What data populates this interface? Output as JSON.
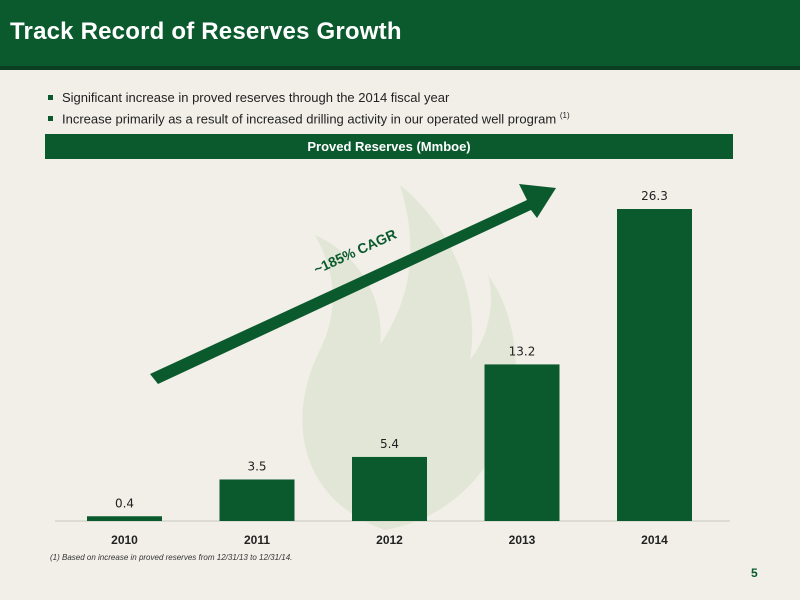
{
  "header": {
    "title": "Track Record of Reserves Growth"
  },
  "bullets": [
    {
      "text": "Significant increase in proved reserves through the 2014 fiscal year",
      "sup": ""
    },
    {
      "text": "Increase primarily as a result of increased drilling activity in our operated well program",
      "sup": "(1)"
    }
  ],
  "footnote": "(1) Based on increase in proved reserves from 12/31/13 to 12/31/14.",
  "page_number": "5",
  "colors": {
    "brand": "#0b5a2e",
    "background": "#f1efe8",
    "watermark": "#dfe4d2"
  },
  "chart_data": {
    "type": "bar",
    "title": "Proved Reserves (Mmboe)",
    "categories": [
      "2010",
      "2011",
      "2012",
      "2013",
      "2014"
    ],
    "values": [
      0.4,
      3.5,
      5.4,
      13.2,
      26.3
    ],
    "value_labels": [
      "0.4",
      "3.5",
      "5.4",
      "13.2",
      "26.3"
    ],
    "ylim": [
      0,
      30
    ],
    "grid": false,
    "annotation": "~185% CAGR"
  }
}
